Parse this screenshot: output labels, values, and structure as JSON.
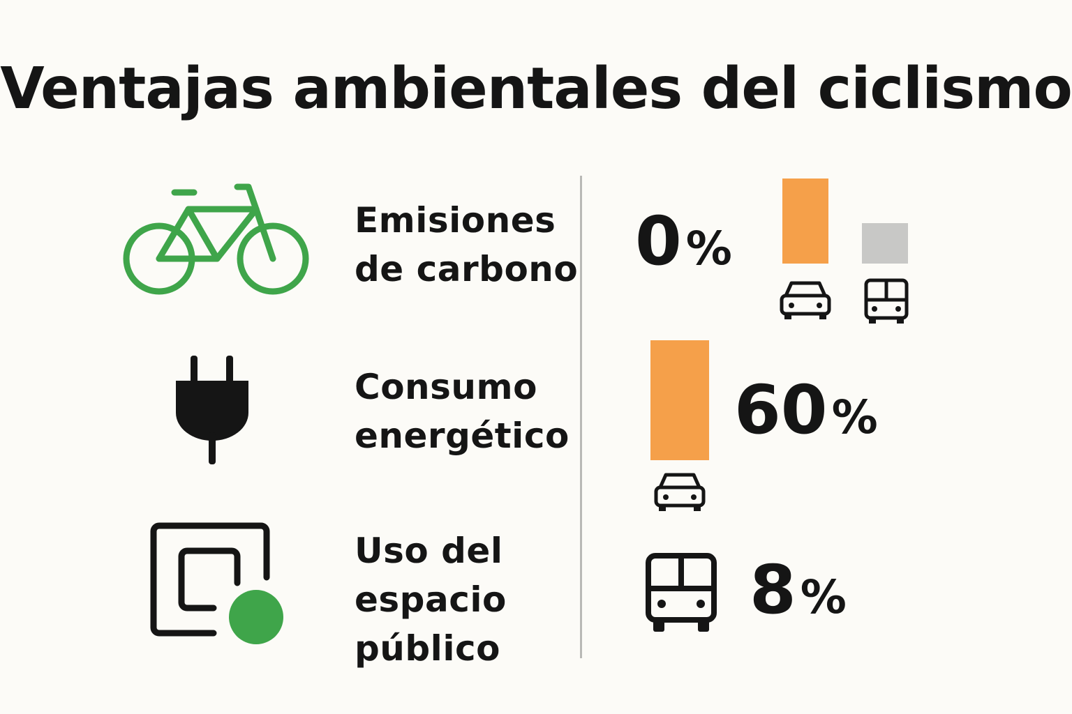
{
  "title": "Ventajas ambientales del ciclismo",
  "colors": {
    "accent_green": "#3fa54a",
    "bar_orange": "#f5a04a",
    "bar_gray": "#c8c8c6",
    "text": "#151515",
    "background": "#fcfbf7"
  },
  "rows": [
    {
      "icon": "bicycle-icon",
      "label_lines": [
        "Emisiones",
        "de carbono"
      ],
      "stat_number": "0",
      "stat_unit": "%",
      "comparison_icons": [
        "car-icon",
        "bus-icon"
      ]
    },
    {
      "icon": "plug-icon",
      "label_lines": [
        "Consumo",
        "energético"
      ],
      "stat_number": "60",
      "stat_unit": "%",
      "comparison_icons": [
        "car-icon"
      ]
    },
    {
      "icon": "space-icon",
      "label_lines": [
        "Uso del",
        "espacio",
        "público"
      ],
      "stat_number": "8",
      "stat_unit": "%",
      "comparison_icons": [
        "bus-icon"
      ]
    }
  ]
}
